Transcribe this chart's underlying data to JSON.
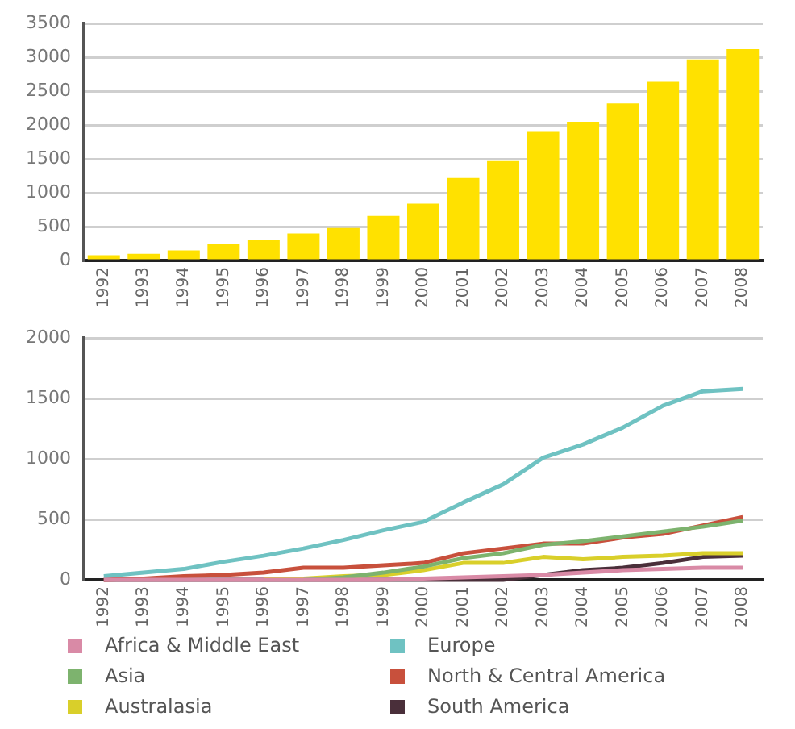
{
  "chart_data": [
    {
      "type": "bar",
      "categories": [
        "1992",
        "1993",
        "1994",
        "1995",
        "1996",
        "1997",
        "1998",
        "1999",
        "2000",
        "2001",
        "2002",
        "2003",
        "2004",
        "2005",
        "2006",
        "2007",
        "2008"
      ],
      "series": [
        {
          "color": "#ffe100",
          "values": [
            80,
            100,
            150,
            240,
            300,
            400,
            480,
            660,
            840,
            1220,
            1470,
            1900,
            2050,
            2320,
            2640,
            2970,
            3120
          ]
        }
      ],
      "ylim": [
        0,
        3500
      ],
      "yticks": [
        0,
        500,
        1000,
        1500,
        2000,
        2500,
        3000,
        3500
      ],
      "grid": "y",
      "legend": false
    },
    {
      "type": "line",
      "categories": [
        "1992",
        "1993",
        "1994",
        "1995",
        "1996",
        "1997",
        "1998",
        "1999",
        "2000",
        "2001",
        "2002",
        "2003",
        "2004",
        "2005",
        "2006",
        "2007",
        "2008"
      ],
      "series": [
        {
          "name": "Africa & Middle East",
          "color": "#d98aa6",
          "values": [
            0,
            0,
            0,
            0,
            0,
            0,
            0,
            0,
            10,
            20,
            30,
            40,
            60,
            80,
            90,
            100,
            100
          ]
        },
        {
          "name": "Asia",
          "color": "#7db36e",
          "values": [
            null,
            null,
            null,
            null,
            null,
            0,
            20,
            60,
            110,
            180,
            220,
            290,
            320,
            360,
            400,
            440,
            490
          ]
        },
        {
          "name": "Australasia",
          "color": "#d9cf2a",
          "values": [
            null,
            null,
            null,
            null,
            10,
            10,
            30,
            40,
            80,
            140,
            140,
            190,
            170,
            190,
            200,
            220,
            220
          ]
        },
        {
          "name": "Europe",
          "color": "#6fc2c2",
          "values": [
            30,
            60,
            90,
            150,
            200,
            260,
            330,
            410,
            480,
            640,
            790,
            1010,
            1120,
            1260,
            1440,
            1560,
            1580
          ]
        },
        {
          "name": "North & Central America",
          "color": "#c8503c",
          "values": [
            0,
            10,
            30,
            40,
            60,
            100,
            100,
            120,
            140,
            220,
            260,
            300,
            300,
            350,
            380,
            450,
            520
          ]
        },
        {
          "name": "South America",
          "color": "#4a2f3a",
          "values": [
            0,
            0,
            0,
            0,
            0,
            0,
            0,
            0,
            0,
            0,
            0,
            40,
            80,
            100,
            140,
            190,
            200
          ]
        }
      ],
      "ylim": [
        0,
        2000
      ],
      "yticks": [
        0,
        500,
        1000,
        1500,
        2000
      ],
      "grid": "y",
      "legend": "bottom",
      "marker": "none",
      "line_style": "solid"
    }
  ]
}
